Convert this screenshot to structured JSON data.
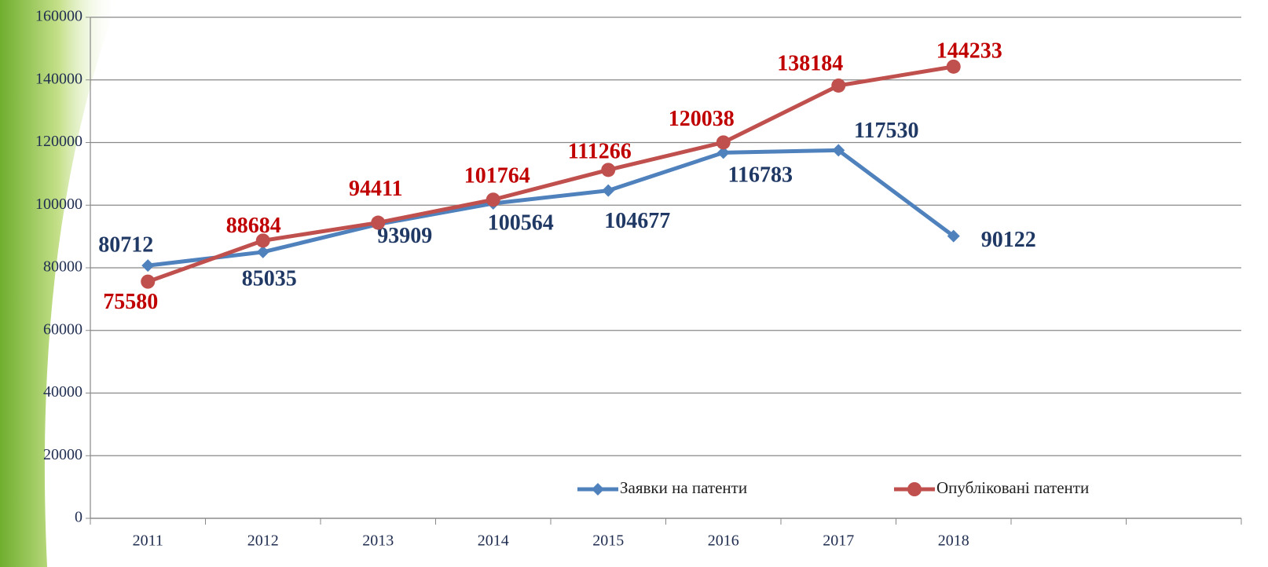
{
  "chart_data": {
    "type": "line",
    "categories": [
      "2011",
      "2012",
      "2013",
      "2014",
      "2015",
      "2016",
      "2017",
      "2018",
      null,
      null
    ],
    "series": [
      {
        "name": "Заявки на патенти",
        "color": "#4f81bd",
        "label_color": "#1f3864",
        "marker": "diamond",
        "values": [
          80712,
          85035,
          93909,
          100564,
          104677,
          116783,
          117530,
          90122,
          null,
          null
        ]
      },
      {
        "name": "Опубліковані патенти",
        "color": "#c0504d",
        "label_color": "#c00000",
        "marker": "circle",
        "values": [
          75580,
          88684,
          94411,
          101764,
          111266,
          120038,
          138184,
          144233,
          null,
          null
        ]
      }
    ],
    "ylim": [
      0,
      160000
    ],
    "yticks": [
      0,
      20000,
      40000,
      60000,
      80000,
      100000,
      120000,
      140000,
      160000
    ],
    "grid": true
  }
}
